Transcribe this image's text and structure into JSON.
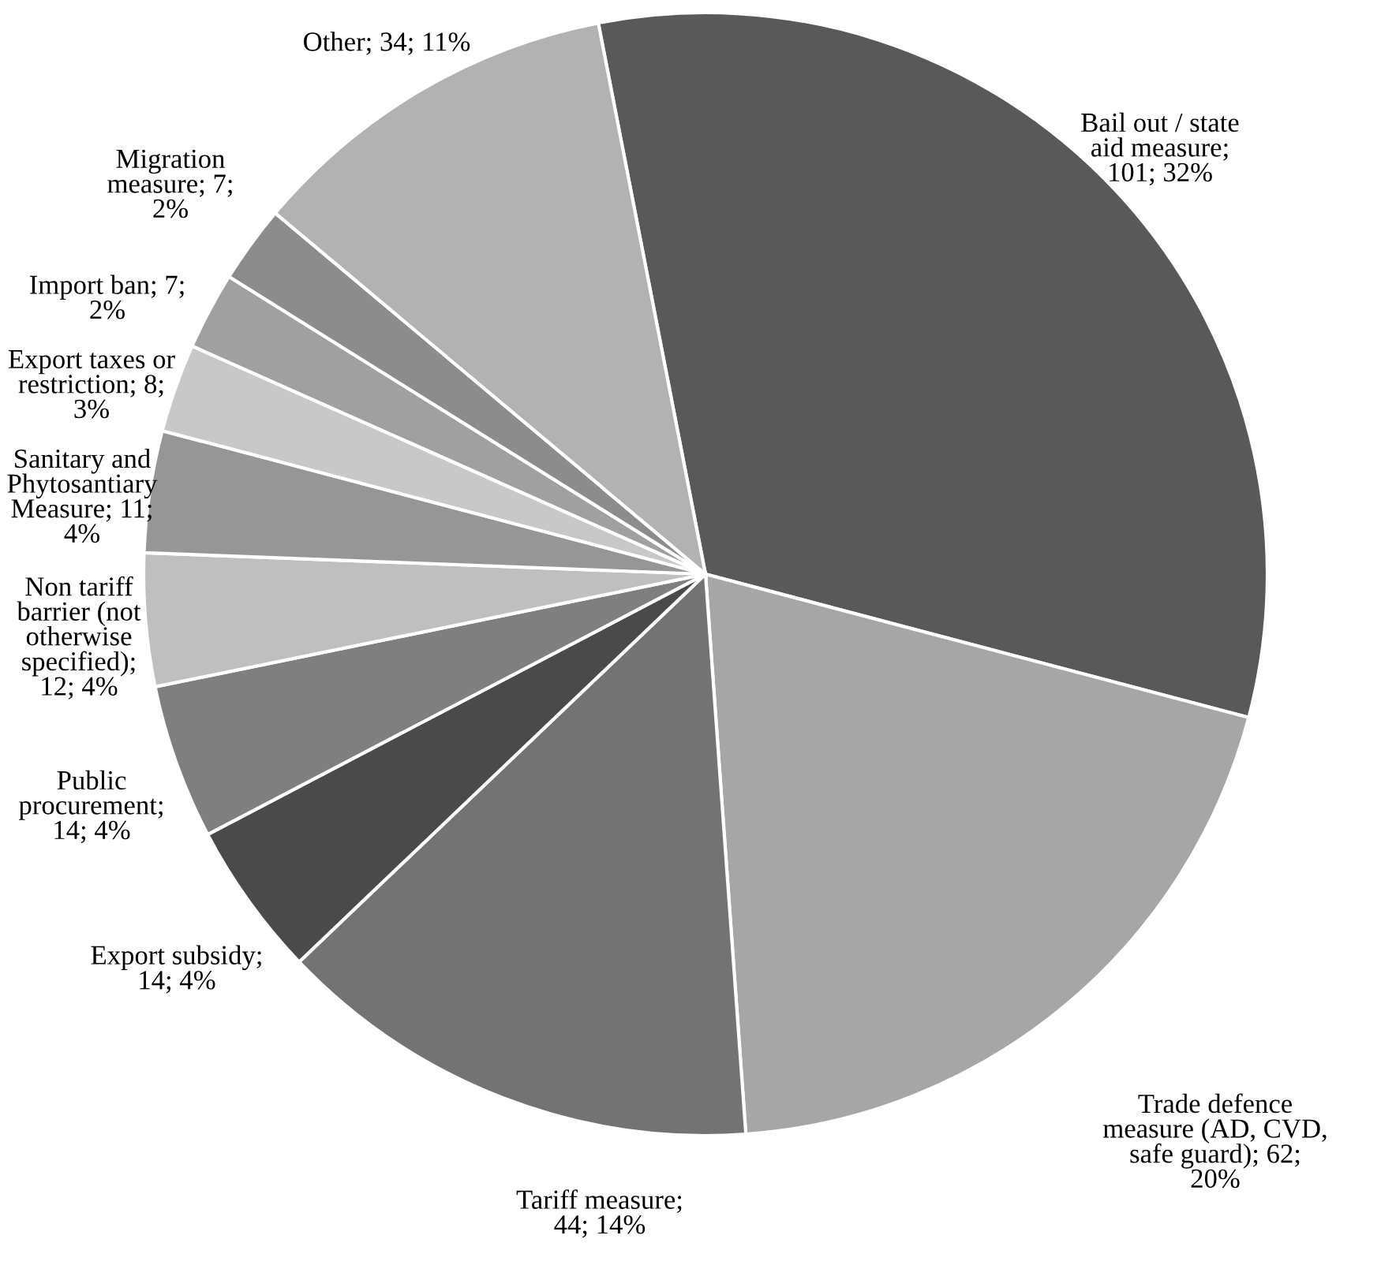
{
  "chart_data": {
    "type": "pie",
    "categories": [
      "Bail out / state aid measure",
      "Trade defence measure (AD, CVD, safe guard)",
      "Tariff measure",
      "Export subsidy",
      "Public procurement",
      "Non tariff barrier (not otherwise specified)",
      "Sanitary and Phytosantiary Measure",
      "Export taxes or restriction",
      "Import ban",
      "Migration measure",
      "Other"
    ],
    "values": [
      101,
      62,
      44,
      14,
      14,
      12,
      11,
      8,
      7,
      7,
      34
    ],
    "value_labels": [
      "; 101; 32%",
      "; 62; 20%",
      "; 44; 14%",
      "; 14; 4%",
      "; 14; 4%",
      "; 12; 4%",
      "; 11; 4%",
      "; 8; 3%",
      "; 7; 2%",
      "; 7; 2%",
      "; 34; 11%"
    ],
    "colors": [
      "#595959",
      "#a6a6a6",
      "#737373",
      "#4a4a4a",
      "#7f7f7f",
      "#bfbfbf",
      "#969696",
      "#c8c8c8",
      "#a0a0a0",
      "#8c8c8c",
      "#b2b2b2"
    ]
  }
}
